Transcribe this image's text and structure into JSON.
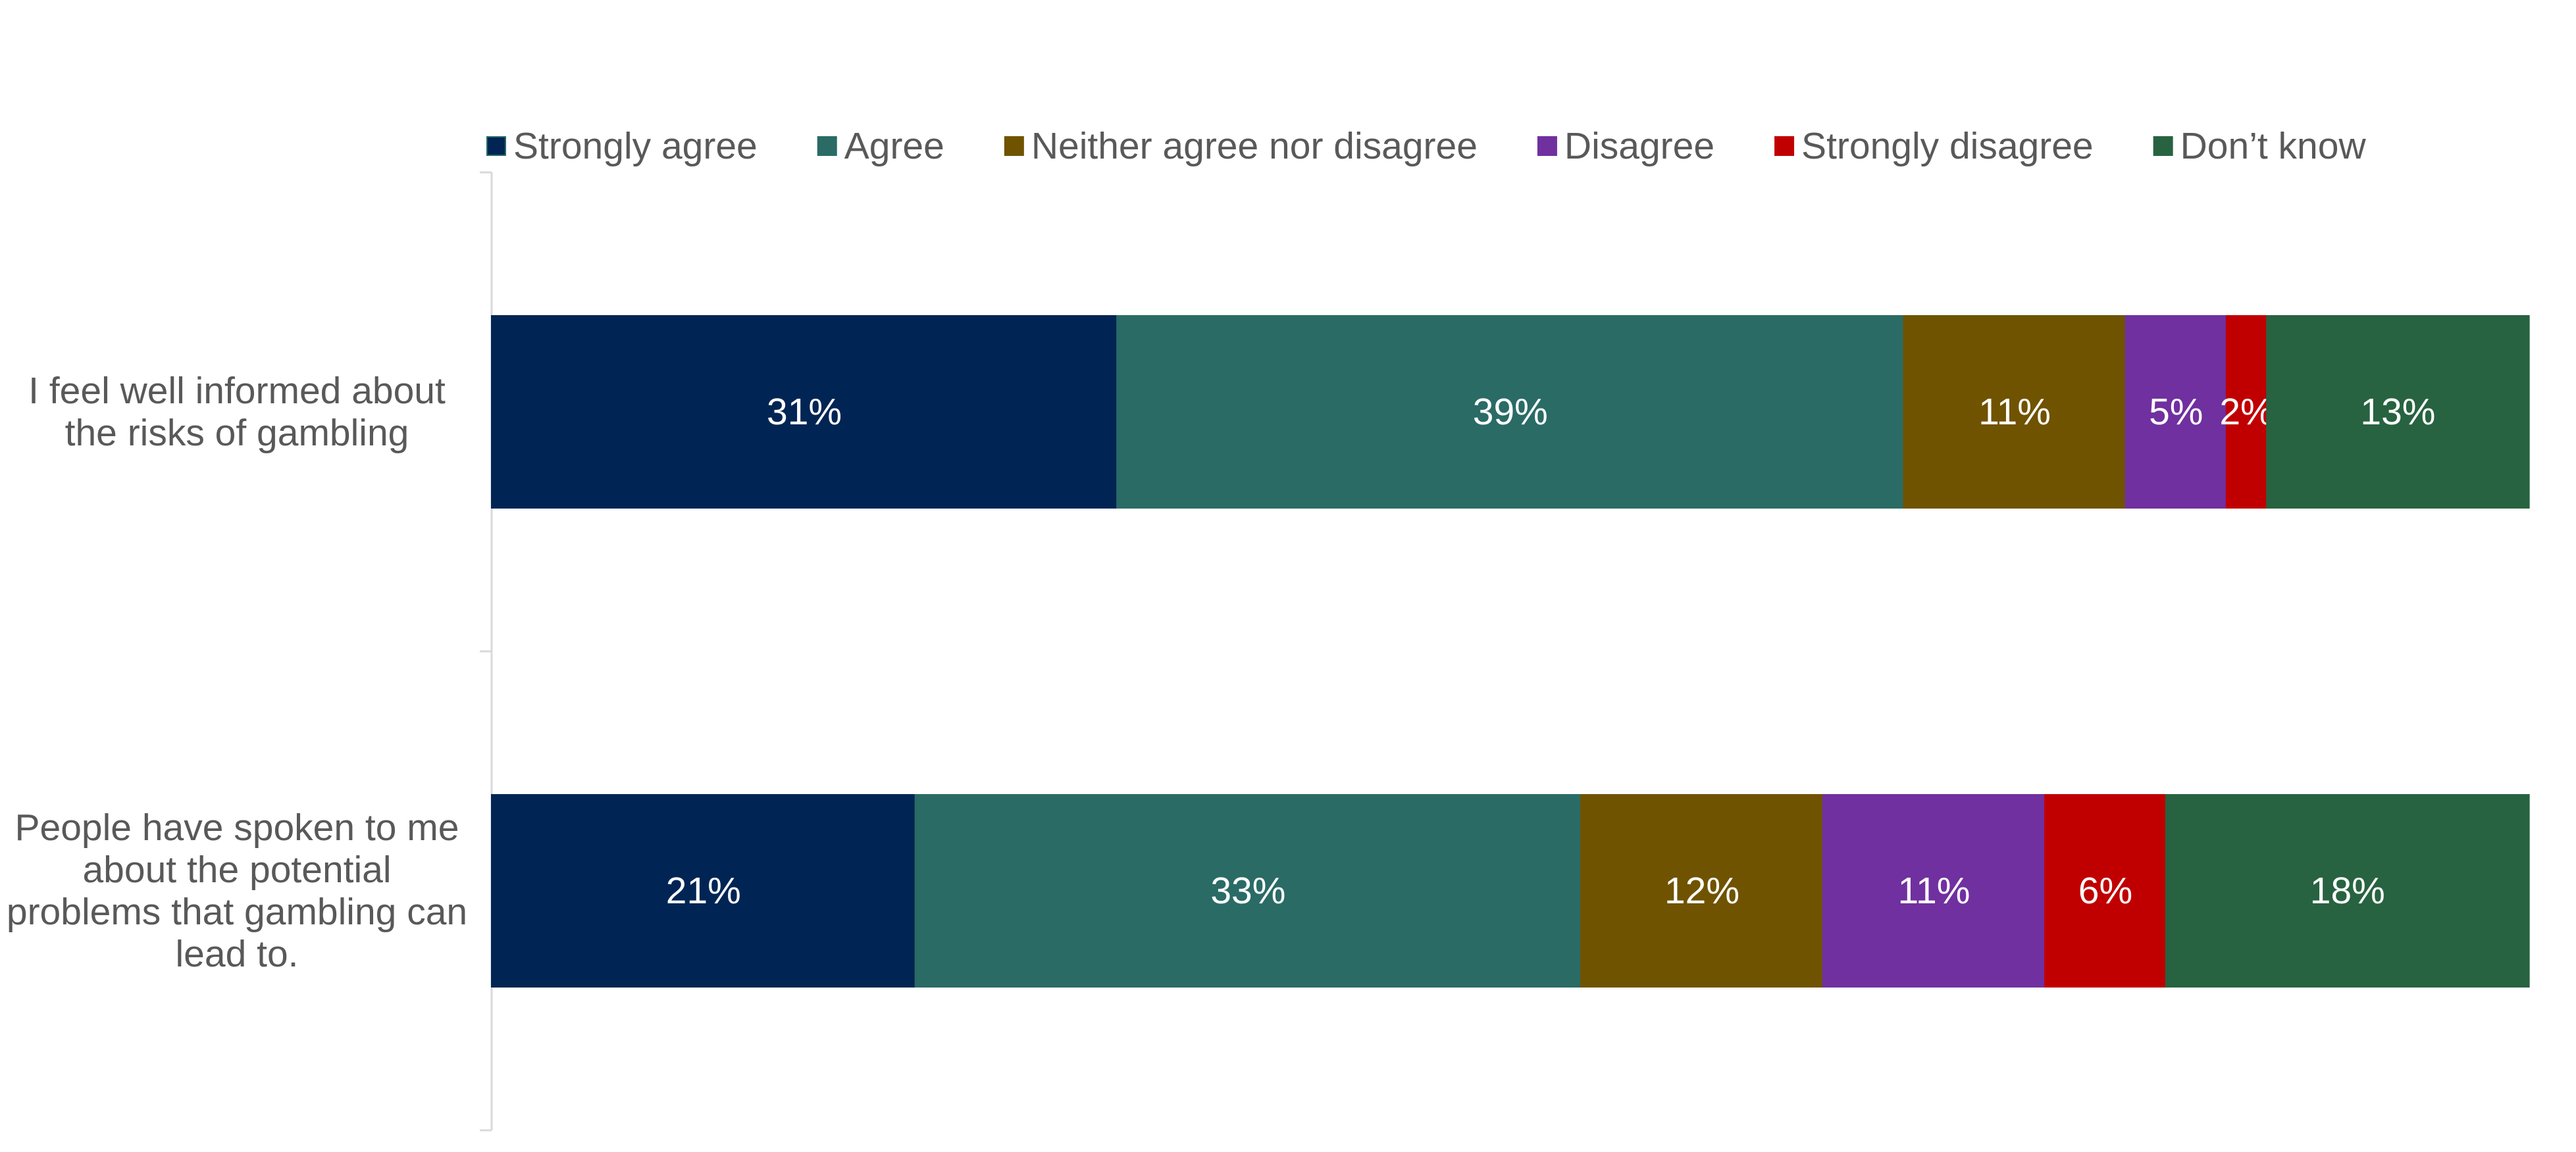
{
  "chart_data": {
    "type": "bar",
    "orientation": "horizontal",
    "stacked": true,
    "title": "",
    "xlabel": "",
    "ylabel": "",
    "xlim": [
      0,
      100
    ],
    "grid": false,
    "legend_position": "top",
    "categories": [
      "I feel well informed about the risks of gambling",
      "People have spoken to me about the potential problems that gambling can lead to."
    ],
    "category_label_lines": [
      [
        "I feel well informed about",
        "the risks of gambling"
      ],
      [
        "People have spoken to me",
        "about the potential",
        "problems that gambling can",
        "lead to."
      ]
    ],
    "series": [
      {
        "name": "Strongly agree",
        "color": "#002554",
        "values": [
          31,
          21
        ],
        "labels": [
          "31%",
          "21%"
        ]
      },
      {
        "name": "Agree",
        "color": "#2A6B66",
        "values": [
          39,
          33
        ],
        "labels": [
          "39%",
          "33%"
        ]
      },
      {
        "name": "Neither agree nor disagree",
        "color": "#705300",
        "values": [
          11,
          12
        ],
        "labels": [
          "11%",
          "12%"
        ]
      },
      {
        "name": "Disagree",
        "color": "#7030A0",
        "values": [
          5,
          11
        ],
        "labels": [
          "5%",
          "11%"
        ]
      },
      {
        "name": "Strongly disagree",
        "color": "#C00000",
        "values": [
          2,
          6
        ],
        "labels": [
          "2%",
          "6%"
        ]
      },
      {
        "name": "Don’t know",
        "color": "#276340",
        "values": [
          13,
          18
        ],
        "labels": [
          "13%",
          "18%"
        ]
      }
    ]
  }
}
